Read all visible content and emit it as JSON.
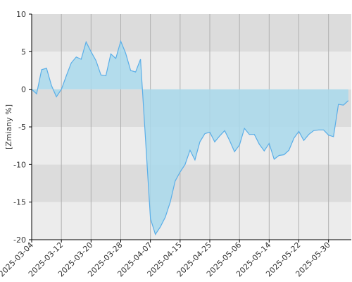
{
  "chart_data": {
    "type": "area",
    "y_label": "[Zmiany %]",
    "categories": [
      "2025-03-04",
      null,
      null,
      null,
      null,
      null,
      "2025-03-12",
      null,
      null,
      null,
      null,
      null,
      "2025-03-20",
      null,
      null,
      null,
      null,
      null,
      "2025-03-28",
      null,
      null,
      null,
      null,
      null,
      "2025-04-07",
      null,
      null,
      null,
      null,
      null,
      "2025-04-15",
      null,
      null,
      null,
      null,
      null,
      "2025-04-25",
      null,
      null,
      null,
      null,
      null,
      "2025-05-06",
      null,
      null,
      null,
      null,
      null,
      "2025-05-14",
      null,
      null,
      null,
      null,
      null,
      "2025-05-22",
      null,
      null,
      null,
      null,
      null,
      "2025-05-30",
      null,
      null,
      null,
      null
    ],
    "values": [
      0,
      -0.6,
      2.6,
      2.8,
      0.5,
      -1.0,
      0.0,
      1.8,
      3.5,
      4.3,
      4.0,
      6.3,
      5.0,
      3.8,
      1.9,
      1.8,
      4.7,
      4.1,
      6.4,
      4.8,
      2.5,
      2.3,
      4.0,
      -6.5,
      -17.2,
      -19.3,
      -18.3,
      -17.0,
      -15.0,
      -12.2,
      -11.0,
      -10.0,
      -8.1,
      -9.4,
      -7.0,
      -5.9,
      -5.7,
      -7.0,
      -6.2,
      -5.5,
      -6.8,
      -8.3,
      -7.4,
      -5.2,
      -6.0,
      -6.0,
      -7.3,
      -8.2,
      -7.2,
      -9.3,
      -8.8,
      -8.7,
      -8.1,
      -6.5,
      -5.6,
      -6.8,
      -6.0,
      -5.5,
      -5.4,
      -5.4,
      -6.1,
      -6.3,
      -2.0,
      -2.1,
      -1.5
    ],
    "color": "#5aaee8",
    "fill_color": "#a9d9ec",
    "ylim": [
      -20,
      10
    ],
    "yticks": [
      -20,
      -15,
      -10,
      -5,
      0,
      5,
      10
    ],
    "band_colors": [
      "#ececec",
      "#dcdcdc"
    ],
    "grid": true
  }
}
